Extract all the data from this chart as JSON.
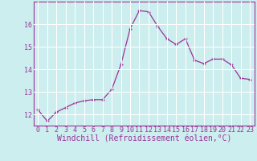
{
  "x": [
    0,
    1,
    2,
    3,
    4,
    5,
    6,
    7,
    8,
    9,
    10,
    11,
    12,
    13,
    14,
    15,
    16,
    17,
    18,
    19,
    20,
    21,
    22,
    23
  ],
  "y": [
    12.2,
    11.7,
    12.1,
    12.3,
    12.5,
    12.6,
    12.65,
    12.65,
    13.1,
    14.2,
    15.8,
    16.6,
    16.55,
    15.9,
    15.35,
    15.1,
    15.35,
    14.4,
    14.25,
    14.45,
    14.45,
    14.2,
    13.6,
    13.55
  ],
  "line_color": "#993399",
  "marker": "+",
  "markersize": 3.5,
  "linewidth": 0.9,
  "background_color": "#cceeee",
  "grid_color": "#ffffff",
  "xlabel": "Windchill (Refroidissement éolien,°C)",
  "ylabel": "",
  "ylim": [
    11.5,
    17.0
  ],
  "xlim": [
    -0.5,
    23.5
  ],
  "yticks": [
    12,
    13,
    14,
    15,
    16
  ],
  "xticks": [
    0,
    1,
    2,
    3,
    4,
    5,
    6,
    7,
    8,
    9,
    10,
    11,
    12,
    13,
    14,
    15,
    16,
    17,
    18,
    19,
    20,
    21,
    22,
    23
  ],
  "xlabel_fontsize": 7.0,
  "tick_fontsize": 6.0,
  "tick_color": "#993399",
  "label_color": "#993399",
  "spine_color": "#993399"
}
